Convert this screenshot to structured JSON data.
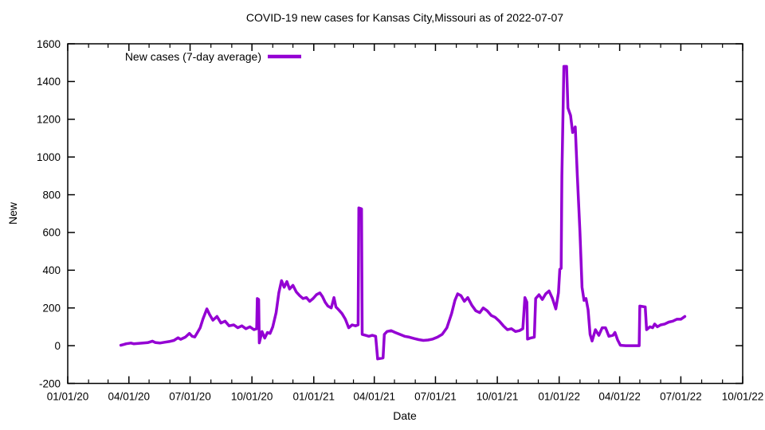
{
  "chart_data": {
    "type": "line",
    "title": "COVID-19 new cases for Kansas City,Missouri as of 2022-07-07",
    "xlabel": "Date",
    "ylabel": "New",
    "legend": {
      "label": "New cases (7-day average)",
      "position": "top-left-inside"
    },
    "line_color": "#9400d3",
    "background": "#ffffff",
    "grid": false,
    "xlim": [
      "2020-01-01",
      "2022-10-01"
    ],
    "ylim": [
      -200,
      1600
    ],
    "y_ticks": [
      -200,
      0,
      200,
      400,
      600,
      800,
      1000,
      1200,
      1400,
      1600
    ],
    "x_major_ticks": [
      {
        "date": "2020-01-01",
        "label": "01/01/20"
      },
      {
        "date": "2020-04-01",
        "label": "04/01/20"
      },
      {
        "date": "2020-07-01",
        "label": "07/01/20"
      },
      {
        "date": "2020-10-01",
        "label": "10/01/20"
      },
      {
        "date": "2021-01-01",
        "label": "01/01/21"
      },
      {
        "date": "2021-04-01",
        "label": "04/01/21"
      },
      {
        "date": "2021-07-01",
        "label": "07/01/21"
      },
      {
        "date": "2021-10-01",
        "label": "10/01/21"
      },
      {
        "date": "2022-01-01",
        "label": "01/01/22"
      },
      {
        "date": "2022-04-01",
        "label": "04/01/22"
      },
      {
        "date": "2022-07-01",
        "label": "07/01/22"
      },
      {
        "date": "2022-10-01",
        "label": "10/01/22"
      }
    ],
    "x_minor_ticks": "monthly",
    "series": [
      {
        "name": "New cases (7-day average)",
        "color": "#9400d3",
        "points": [
          [
            "2020-03-20",
            2
          ],
          [
            "2020-03-24",
            6
          ],
          [
            "2020-03-28",
            10
          ],
          [
            "2020-04-04",
            14
          ],
          [
            "2020-04-08",
            10
          ],
          [
            "2020-04-15",
            12
          ],
          [
            "2020-04-22",
            14
          ],
          [
            "2020-04-29",
            16
          ],
          [
            "2020-05-06",
            24
          ],
          [
            "2020-05-10",
            17
          ],
          [
            "2020-05-17",
            14
          ],
          [
            "2020-05-24",
            18
          ],
          [
            "2020-05-31",
            22
          ],
          [
            "2020-06-07",
            28
          ],
          [
            "2020-06-13",
            42
          ],
          [
            "2020-06-17",
            34
          ],
          [
            "2020-06-24",
            45
          ],
          [
            "2020-06-30",
            65
          ],
          [
            "2020-07-04",
            50
          ],
          [
            "2020-07-08",
            46
          ],
          [
            "2020-07-12",
            70
          ],
          [
            "2020-07-16",
            95
          ],
          [
            "2020-07-20",
            140
          ],
          [
            "2020-07-26",
            195
          ],
          [
            "2020-07-30",
            165
          ],
          [
            "2020-08-04",
            135
          ],
          [
            "2020-08-10",
            155
          ],
          [
            "2020-08-16",
            120
          ],
          [
            "2020-08-22",
            130
          ],
          [
            "2020-08-28",
            105
          ],
          [
            "2020-09-04",
            110
          ],
          [
            "2020-09-10",
            95
          ],
          [
            "2020-09-16",
            105
          ],
          [
            "2020-09-22",
            90
          ],
          [
            "2020-09-28",
            100
          ],
          [
            "2020-10-04",
            85
          ],
          [
            "2020-10-08",
            90
          ],
          [
            "2020-10-09",
            250
          ],
          [
            "2020-10-11",
            245
          ],
          [
            "2020-10-12",
            15
          ],
          [
            "2020-10-16",
            75
          ],
          [
            "2020-10-20",
            40
          ],
          [
            "2020-10-24",
            70
          ],
          [
            "2020-10-28",
            65
          ],
          [
            "2020-11-01",
            100
          ],
          [
            "2020-11-06",
            175
          ],
          [
            "2020-11-10",
            280
          ],
          [
            "2020-11-14",
            345
          ],
          [
            "2020-11-18",
            310
          ],
          [
            "2020-11-22",
            340
          ],
          [
            "2020-11-26",
            300
          ],
          [
            "2020-12-01",
            320
          ],
          [
            "2020-12-06",
            285
          ],
          [
            "2020-12-11",
            265
          ],
          [
            "2020-12-16",
            250
          ],
          [
            "2020-12-21",
            255
          ],
          [
            "2020-12-26",
            235
          ],
          [
            "2020-12-31",
            250
          ],
          [
            "2021-01-05",
            270
          ],
          [
            "2021-01-10",
            280
          ],
          [
            "2021-01-14",
            260
          ],
          [
            "2021-01-18",
            230
          ],
          [
            "2021-01-22",
            210
          ],
          [
            "2021-01-27",
            200
          ],
          [
            "2021-01-31",
            255
          ],
          [
            "2021-02-03",
            205
          ],
          [
            "2021-02-07",
            190
          ],
          [
            "2021-02-12",
            170
          ],
          [
            "2021-02-17",
            140
          ],
          [
            "2021-02-22",
            95
          ],
          [
            "2021-02-27",
            110
          ],
          [
            "2021-03-04",
            105
          ],
          [
            "2021-03-08",
            110
          ],
          [
            "2021-03-09",
            730
          ],
          [
            "2021-03-13",
            725
          ],
          [
            "2021-03-14",
            60
          ],
          [
            "2021-03-19",
            55
          ],
          [
            "2021-03-24",
            50
          ],
          [
            "2021-03-29",
            55
          ],
          [
            "2021-04-03",
            50
          ],
          [
            "2021-04-06",
            -70
          ],
          [
            "2021-04-14",
            -65
          ],
          [
            "2021-04-16",
            60
          ],
          [
            "2021-04-20",
            75
          ],
          [
            "2021-04-26",
            80
          ],
          [
            "2021-05-02",
            70
          ],
          [
            "2021-05-09",
            60
          ],
          [
            "2021-05-16",
            50
          ],
          [
            "2021-05-23",
            45
          ],
          [
            "2021-05-30",
            38
          ],
          [
            "2021-06-06",
            32
          ],
          [
            "2021-06-13",
            28
          ],
          [
            "2021-06-20",
            30
          ],
          [
            "2021-06-27",
            35
          ],
          [
            "2021-07-04",
            45
          ],
          [
            "2021-07-11",
            60
          ],
          [
            "2021-07-18",
            95
          ],
          [
            "2021-07-25",
            170
          ],
          [
            "2021-07-30",
            240
          ],
          [
            "2021-08-03",
            275
          ],
          [
            "2021-08-08",
            265
          ],
          [
            "2021-08-13",
            235
          ],
          [
            "2021-08-18",
            255
          ],
          [
            "2021-08-24",
            215
          ],
          [
            "2021-08-30",
            185
          ],
          [
            "2021-09-05",
            175
          ],
          [
            "2021-09-10",
            200
          ],
          [
            "2021-09-16",
            185
          ],
          [
            "2021-09-22",
            160
          ],
          [
            "2021-09-28",
            150
          ],
          [
            "2021-10-04",
            130
          ],
          [
            "2021-10-10",
            105
          ],
          [
            "2021-10-16",
            85
          ],
          [
            "2021-10-22",
            90
          ],
          [
            "2021-10-28",
            75
          ],
          [
            "2021-11-03",
            80
          ],
          [
            "2021-11-08",
            90
          ],
          [
            "2021-11-11",
            255
          ],
          [
            "2021-11-14",
            230
          ],
          [
            "2021-11-15",
            35
          ],
          [
            "2021-11-19",
            40
          ],
          [
            "2021-11-25",
            45
          ],
          [
            "2021-11-27",
            250
          ],
          [
            "2021-12-02",
            270
          ],
          [
            "2021-12-07",
            245
          ],
          [
            "2021-12-12",
            275
          ],
          [
            "2021-12-17",
            290
          ],
          [
            "2021-12-22",
            250
          ],
          [
            "2021-12-27",
            195
          ],
          [
            "2021-12-31",
            280
          ],
          [
            "2022-01-02",
            405
          ],
          [
            "2022-01-04",
            410
          ],
          [
            "2022-01-05",
            900
          ],
          [
            "2022-01-08",
            1480
          ],
          [
            "2022-01-12",
            1480
          ],
          [
            "2022-01-14",
            1260
          ],
          [
            "2022-01-18",
            1220
          ],
          [
            "2022-01-21",
            1130
          ],
          [
            "2022-01-25",
            1160
          ],
          [
            "2022-01-28",
            900
          ],
          [
            "2022-02-01",
            600
          ],
          [
            "2022-02-04",
            310
          ],
          [
            "2022-02-07",
            240
          ],
          [
            "2022-02-10",
            250
          ],
          [
            "2022-02-13",
            190
          ],
          [
            "2022-02-16",
            60
          ],
          [
            "2022-02-19",
            25
          ],
          [
            "2022-02-24",
            85
          ],
          [
            "2022-03-01",
            55
          ],
          [
            "2022-03-06",
            95
          ],
          [
            "2022-03-11",
            95
          ],
          [
            "2022-03-16",
            50
          ],
          [
            "2022-03-22",
            55
          ],
          [
            "2022-03-25",
            70
          ],
          [
            "2022-03-29",
            30
          ],
          [
            "2022-04-02",
            2
          ],
          [
            "2022-04-10",
            0
          ],
          [
            "2022-04-20",
            0
          ],
          [
            "2022-04-30",
            0
          ],
          [
            "2022-05-01",
            210
          ],
          [
            "2022-05-09",
            205
          ],
          [
            "2022-05-11",
            85
          ],
          [
            "2022-05-16",
            100
          ],
          [
            "2022-05-20",
            95
          ],
          [
            "2022-05-23",
            115
          ],
          [
            "2022-05-27",
            100
          ],
          [
            "2022-06-01",
            110
          ],
          [
            "2022-06-07",
            115
          ],
          [
            "2022-06-13",
            125
          ],
          [
            "2022-06-19",
            130
          ],
          [
            "2022-06-25",
            140
          ],
          [
            "2022-07-01",
            140
          ],
          [
            "2022-07-07",
            155
          ]
        ]
      }
    ]
  }
}
